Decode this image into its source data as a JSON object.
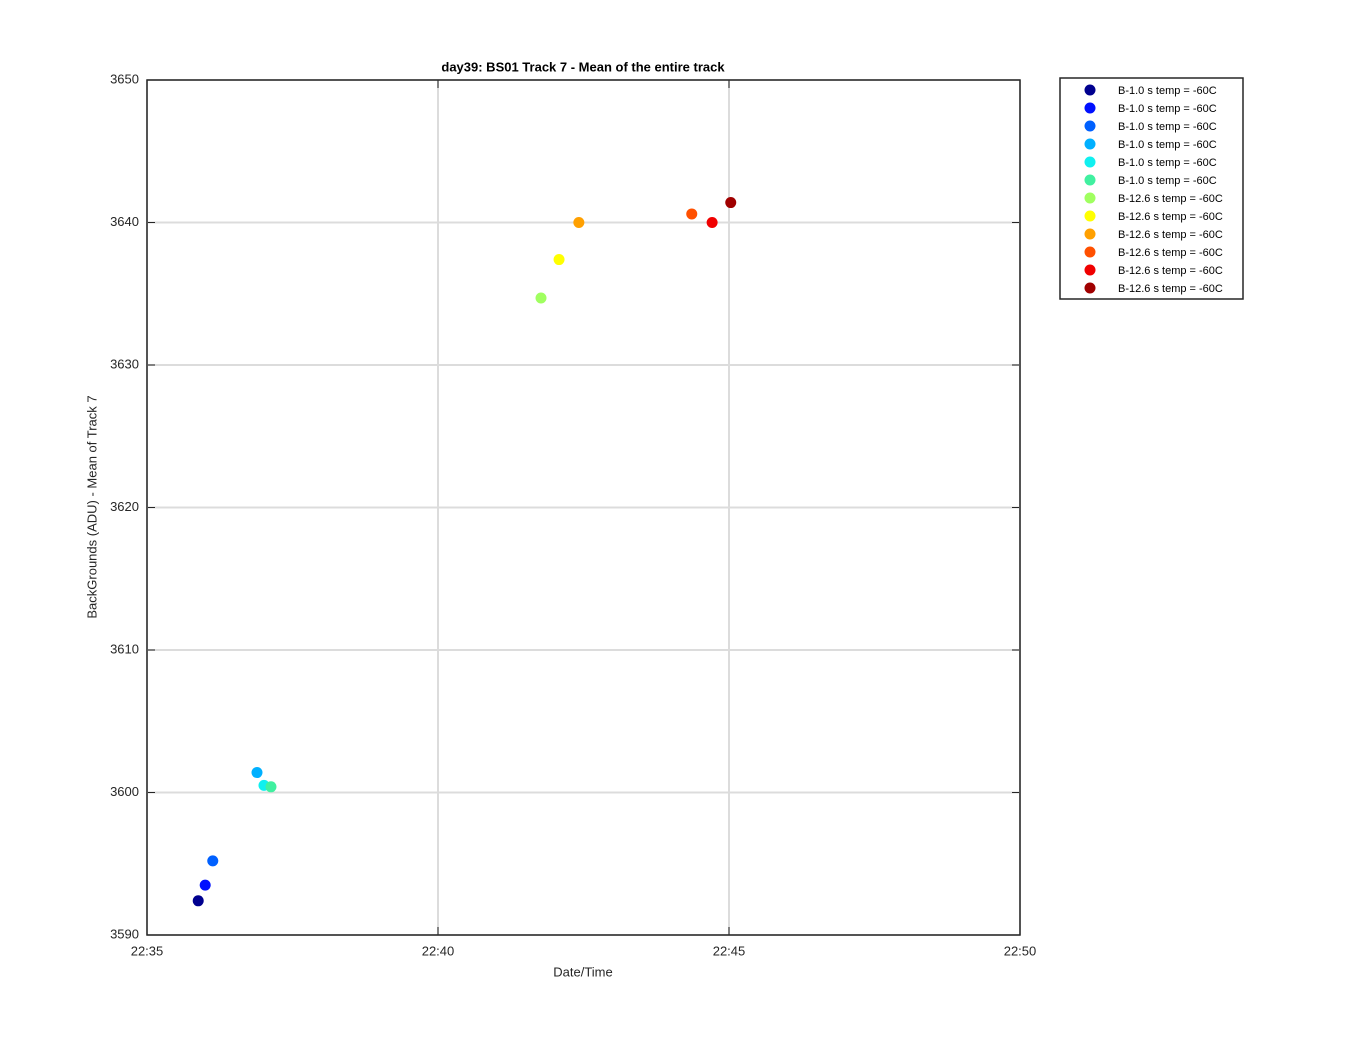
{
  "chart_data": {
    "type": "scatter",
    "title": "day39: BS01  Track 7 - Mean of the entire track",
    "x_label": "Date/Time",
    "y_label": "BackGrounds (ADU) - Mean of Track 7",
    "xlim": [
      1355,
      1370
    ],
    "xticks": [
      {
        "value": 1355,
        "label": "22:35"
      },
      {
        "value": 1360,
        "label": "22:40"
      },
      {
        "value": 1365,
        "label": "22:45"
      },
      {
        "value": 1370,
        "label": "22:50"
      }
    ],
    "ylim": [
      3590,
      3650
    ],
    "yticks": [
      3590,
      3600,
      3610,
      3620,
      3630,
      3640,
      3650
    ],
    "grid": true,
    "legend": "outside-right",
    "series": [
      {
        "name": "B-1.0 s temp = -60C",
        "color": "#00008f",
        "x": [
          1355.88
        ],
        "values": [
          3592.4
        ]
      },
      {
        "name": "B-1.0 s temp = -60C",
        "color": "#0010ff",
        "x": [
          1356.0
        ],
        "values": [
          3593.5
        ]
      },
      {
        "name": "B-1.0 s temp = -60C",
        "color": "#0060ff",
        "x": [
          1356.13
        ],
        "values": [
          3595.2
        ]
      },
      {
        "name": "B-1.0 s temp = -60C",
        "color": "#00b0ff",
        "x": [
          1356.89
        ],
        "values": [
          3601.4
        ]
      },
      {
        "name": "B-1.0 s temp = -60C",
        "color": "#10f0f0",
        "x": [
          1357.01
        ],
        "values": [
          3600.5
        ]
      },
      {
        "name": "B-1.0 s temp = -60C",
        "color": "#40f0a0",
        "x": [
          1357.13
        ],
        "values": [
          3600.4
        ]
      },
      {
        "name": "B-12.6 s temp = -60C",
        "color": "#a0ff60",
        "x": [
          1361.77
        ],
        "values": [
          3634.7
        ]
      },
      {
        "name": "B-12.6 s temp = -60C",
        "color": "#ffff00",
        "x": [
          1362.08
        ],
        "values": [
          3637.4
        ]
      },
      {
        "name": "B-12.6 s temp = -60C",
        "color": "#ffa000",
        "x": [
          1362.42
        ],
        "values": [
          3640.0
        ]
      },
      {
        "name": "B-12.6 s temp = -60C",
        "color": "#ff5000",
        "x": [
          1364.36
        ],
        "values": [
          3640.6
        ]
      },
      {
        "name": "B-12.6 s temp = -60C",
        "color": "#f00000",
        "x": [
          1364.71
        ],
        "values": [
          3640.0
        ]
      },
      {
        "name": "B-12.6 s temp = -60C",
        "color": "#a00000",
        "x": [
          1365.03
        ],
        "values": [
          3641.4
        ]
      }
    ]
  }
}
